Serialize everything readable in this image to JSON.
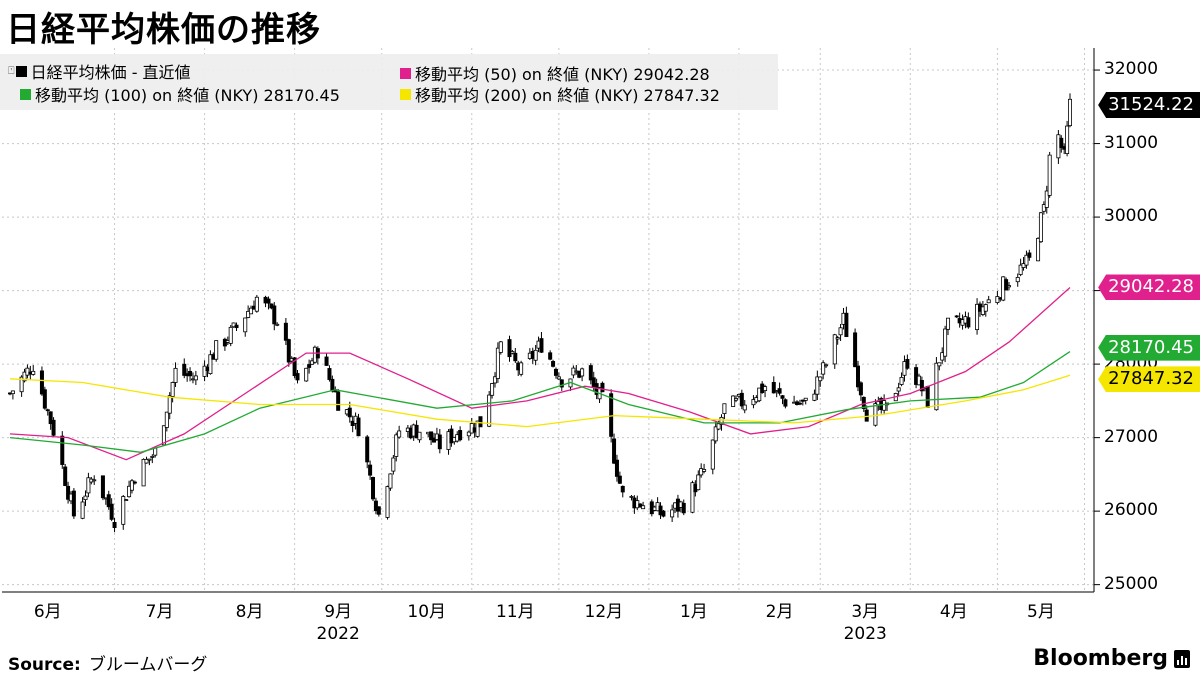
{
  "title": "日経平均株価の推移",
  "source_label": "Source:",
  "source_value": "ブルームバーグ",
  "logo_text": "Bloomberg",
  "legend": [
    {
      "label": "日経平均株価 - 直近値",
      "color": "#000000"
    },
    {
      "label": "移動平均 (50)  on 終値 (NKY)  29042.28",
      "color": "#e0208c"
    },
    {
      "label": "移動平均 (100)  on 終値 (NKY) 28170.45",
      "color": "#22aa33"
    },
    {
      "label": "移動平均 (200)  on 終値 (NKY) 27847.32",
      "color": "#f5e600"
    }
  ],
  "tags": [
    {
      "text": "31524.22",
      "bg": "#000000",
      "fg": "#ffffff",
      "value": 31524.22
    },
    {
      "text": "29042.28",
      "bg": "#e0208c",
      "fg": "#ffffff",
      "value": 29042.28
    },
    {
      "text": "28170.45",
      "bg": "#22aa33",
      "fg": "#ffffff",
      "value": 28170.45
    },
    {
      "text": "27847.32",
      "bg": "#f5e600",
      "fg": "#000000",
      "value": 27847.32
    }
  ],
  "chart_data": {
    "type": "line",
    "title": "日経平均株価の推移",
    "ylim": [
      24900,
      32300
    ],
    "yticks": [
      25000,
      26000,
      27000,
      28000,
      29000,
      30000,
      31000,
      32000
    ],
    "ytick_labels": [
      "25000",
      "26000",
      "27000",
      "28000",
      "29000",
      "30000",
      "31000",
      "32000"
    ],
    "x_month_labels": [
      "6月",
      "7月",
      "8月",
      "9月",
      "10月",
      "11月",
      "12月",
      "1月",
      "2月",
      "3月",
      "4月",
      "5月"
    ],
    "x_year_labels": [
      "2022",
      "2023"
    ],
    "grid": true,
    "legend_position": "top-left",
    "x_start": "2022-05-26",
    "x_end": "2023-05-26",
    "series": [
      {
        "name": "日経平均株価 - 直近値",
        "color": "#000000",
        "points": [
          [
            "2022-05-26",
            27600
          ],
          [
            "2022-06-03",
            28000
          ],
          [
            "2022-06-10",
            27100
          ],
          [
            "2022-06-17",
            25950
          ],
          [
            "2022-06-24",
            26500
          ],
          [
            "2022-07-01",
            25900
          ],
          [
            "2022-07-08",
            26500
          ],
          [
            "2022-07-15",
            26800
          ],
          [
            "2022-07-22",
            27900
          ],
          [
            "2022-07-29",
            27800
          ],
          [
            "2022-08-05",
            28200
          ],
          [
            "2022-08-12",
            28500
          ],
          [
            "2022-08-19",
            28900
          ],
          [
            "2022-08-26",
            28600
          ],
          [
            "2022-09-02",
            27700
          ],
          [
            "2022-09-09",
            28200
          ],
          [
            "2022-09-16",
            27500
          ],
          [
            "2022-09-23",
            27150
          ],
          [
            "2022-09-30",
            25950
          ],
          [
            "2022-10-07",
            27100
          ],
          [
            "2022-10-14",
            27100
          ],
          [
            "2022-10-21",
            26900
          ],
          [
            "2022-10-28",
            27100
          ],
          [
            "2022-11-04",
            27200
          ],
          [
            "2022-11-11",
            28250
          ],
          [
            "2022-11-18",
            27900
          ],
          [
            "2022-11-25",
            28280
          ],
          [
            "2022-12-02",
            27800
          ],
          [
            "2022-12-09",
            27900
          ],
          [
            "2022-12-16",
            27500
          ],
          [
            "2022-12-23",
            26200
          ],
          [
            "2022-12-30",
            26100
          ],
          [
            "2023-01-06",
            25950
          ],
          [
            "2023-01-13",
            26100
          ],
          [
            "2023-01-20",
            26550
          ],
          [
            "2023-01-27",
            27400
          ],
          [
            "2023-02-03",
            27500
          ],
          [
            "2023-02-10",
            27700
          ],
          [
            "2023-02-17",
            27500
          ],
          [
            "2023-02-24",
            27450
          ],
          [
            "2023-03-03",
            28000
          ],
          [
            "2023-03-09",
            28600
          ],
          [
            "2023-03-17",
            27350
          ],
          [
            "2023-03-24",
            27380
          ],
          [
            "2023-03-31",
            28050
          ],
          [
            "2023-04-07",
            27500
          ],
          [
            "2023-04-14",
            28500
          ],
          [
            "2023-04-21",
            28600
          ],
          [
            "2023-04-28",
            28850
          ],
          [
            "2023-05-05",
            29150
          ],
          [
            "2023-05-12",
            29400
          ],
          [
            "2023-05-17",
            30100
          ],
          [
            "2023-05-19",
            30800
          ],
          [
            "2023-05-22",
            31100
          ],
          [
            "2023-05-24",
            30800
          ],
          [
            "2023-05-26",
            31524.22
          ]
        ]
      },
      {
        "name": "移動平均 (50)  on 終値 (NKY)",
        "color": "#e0208c",
        "points": [
          [
            "2022-05-26",
            27050
          ],
          [
            "2022-06-15",
            27000
          ],
          [
            "2022-07-05",
            26700
          ],
          [
            "2022-07-25",
            27050
          ],
          [
            "2022-08-15",
            27600
          ],
          [
            "2022-09-05",
            28150
          ],
          [
            "2022-09-20",
            28150
          ],
          [
            "2022-10-10",
            27800
          ],
          [
            "2022-11-01",
            27400
          ],
          [
            "2022-11-20",
            27500
          ],
          [
            "2022-12-10",
            27700
          ],
          [
            "2022-12-25",
            27600
          ],
          [
            "2023-01-15",
            27350
          ],
          [
            "2023-02-05",
            27050
          ],
          [
            "2023-02-25",
            27150
          ],
          [
            "2023-03-15",
            27450
          ],
          [
            "2023-04-01",
            27600
          ],
          [
            "2023-04-20",
            27900
          ],
          [
            "2023-05-05",
            28300
          ],
          [
            "2023-05-26",
            29042.28
          ]
        ]
      },
      {
        "name": "移動平均 (100)  on 終値 (NKY)",
        "color": "#22aa33",
        "points": [
          [
            "2022-05-26",
            27000
          ],
          [
            "2022-06-20",
            26900
          ],
          [
            "2022-07-10",
            26800
          ],
          [
            "2022-08-01",
            27050
          ],
          [
            "2022-08-20",
            27400
          ],
          [
            "2022-09-15",
            27650
          ],
          [
            "2022-10-20",
            27400
          ],
          [
            "2022-11-15",
            27500
          ],
          [
            "2022-12-05",
            27750
          ],
          [
            "2022-12-25",
            27450
          ],
          [
            "2023-01-20",
            27200
          ],
          [
            "2023-02-15",
            27200
          ],
          [
            "2023-03-10",
            27380
          ],
          [
            "2023-04-01",
            27500
          ],
          [
            "2023-04-25",
            27550
          ],
          [
            "2023-05-10",
            27750
          ],
          [
            "2023-05-26",
            28170.45
          ]
        ]
      },
      {
        "name": "移動平均 (200)  on 終値 (NKY)",
        "color": "#f5e600",
        "points": [
          [
            "2022-05-26",
            27800
          ],
          [
            "2022-06-20",
            27750
          ],
          [
            "2022-07-20",
            27550
          ],
          [
            "2022-08-20",
            27450
          ],
          [
            "2022-09-20",
            27450
          ],
          [
            "2022-10-20",
            27250
          ],
          [
            "2022-11-20",
            27150
          ],
          [
            "2022-12-20",
            27300
          ],
          [
            "2023-01-20",
            27250
          ],
          [
            "2023-02-20",
            27200
          ],
          [
            "2023-03-20",
            27300
          ],
          [
            "2023-04-20",
            27500
          ],
          [
            "2023-05-10",
            27650
          ],
          [
            "2023-05-26",
            27847.32
          ]
        ]
      }
    ]
  }
}
